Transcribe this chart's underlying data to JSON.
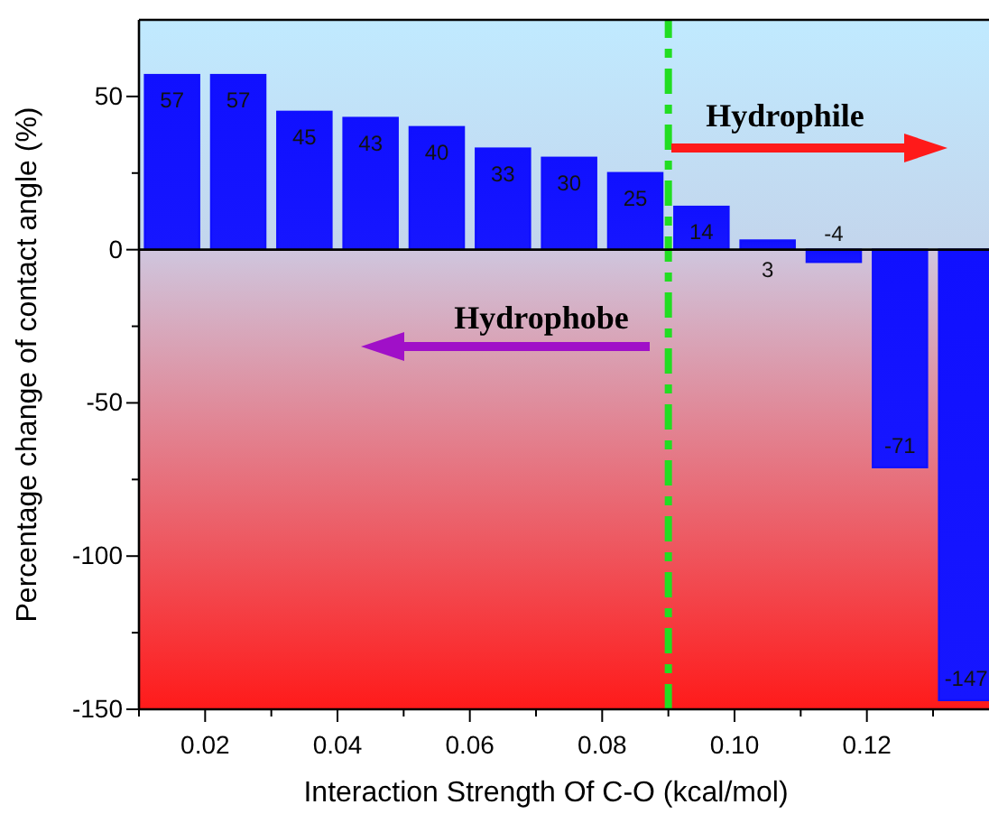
{
  "chart_data": {
    "type": "bar",
    "xlabel": "Interaction Strength Of C-O (kcal/mol)",
    "ylabel": "Percentage change of contact angle (%)",
    "x": [
      0.015,
      0.025,
      0.035,
      0.045,
      0.055,
      0.065,
      0.075,
      0.085,
      0.095,
      0.105,
      0.115,
      0.125,
      0.135
    ],
    "values": [
      57,
      57,
      45,
      43,
      40,
      33,
      30,
      25,
      14,
      3,
      -4,
      -71,
      -147
    ],
    "color": "#1010ff",
    "data_labels": true,
    "xlim": [
      0.01,
      0.139
    ],
    "ylim": [
      -150,
      75
    ],
    "xticks": [
      {
        "value": 0.01,
        "label": null
      },
      0.02,
      {
        "value": 0.03,
        "label": null
      },
      0.04,
      {
        "value": 0.05,
        "label": null
      },
      0.06,
      {
        "value": 0.07,
        "label": null
      },
      0.08,
      {
        "value": 0.09,
        "label": null
      },
      "0.10",
      {
        "value": 0.11,
        "label": null
      },
      0.12,
      {
        "value": 0.13,
        "label": null
      }
    ],
    "yticks": [
      -150,
      {
        "value": -125,
        "label": null
      },
      -100,
      {
        "value": -75,
        "label": null
      },
      -50,
      {
        "value": -25,
        "label": null
      },
      0,
      {
        "value": 25,
        "label": null
      },
      50
    ],
    "grid": false,
    "ref_lines": [
      {
        "axis": "x",
        "value": 0.09,
        "color": "#22dd22",
        "line_style": "dashed"
      }
    ],
    "bands": [
      {
        "axis": "y",
        "from": 0,
        "to": 75,
        "color": "#b6def6"
      },
      {
        "axis": "y",
        "from": -150,
        "to": 0,
        "color": "#ff1a1a"
      }
    ],
    "annotations": [
      "Hydrophile",
      "Hydrophobe"
    ]
  }
}
